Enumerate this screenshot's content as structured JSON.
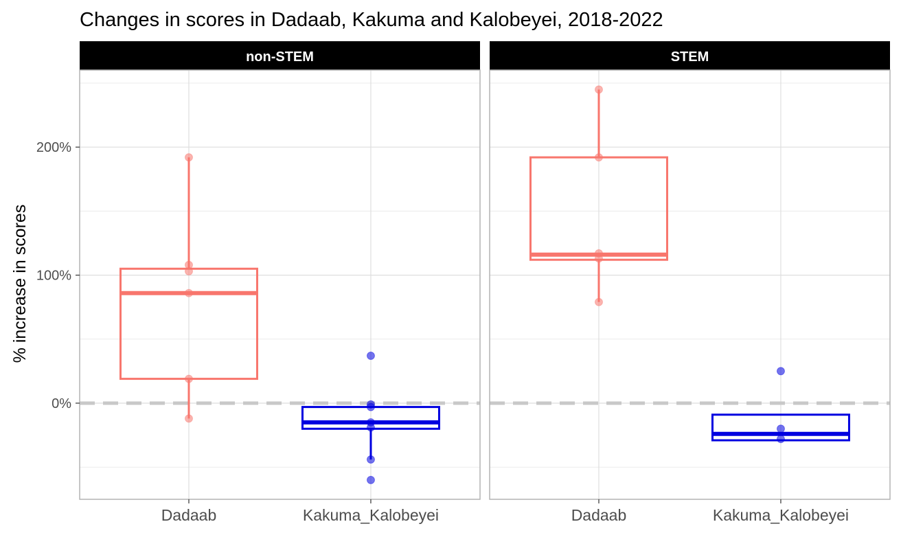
{
  "chart_data": {
    "type": "box",
    "title": "Changes in scores in Dadaab, Kakuma and Kalobeyei, 2018-2022",
    "ylabel": "% increase in scores",
    "xlabel": "",
    "ylim": [
      -75,
      255
    ],
    "y_ticks": [
      0,
      100,
      200
    ],
    "y_tick_labels": [
      "0%",
      "100%",
      "200%"
    ],
    "y_minor_ticks": [
      -50,
      50,
      150,
      250
    ],
    "reference_line": {
      "y": 0,
      "style": "dashed",
      "color": "#c8c8c8"
    },
    "categories": [
      "Dadaab",
      "Kakuma_Kalobeyei"
    ],
    "colors": {
      "Dadaab": "#f8766d",
      "Kakuma_Kalobeyei": "#0000e0"
    },
    "grid": true,
    "facets": [
      {
        "label": "non-STEM",
        "boxes": [
          {
            "category": "Dadaab",
            "q1": 19,
            "median": 86,
            "q3": 105,
            "whisker_low": -12,
            "whisker_high": 192,
            "points": [
              192,
              108,
              103,
              86,
              19,
              -12
            ]
          },
          {
            "category": "Kakuma_Kalobeyei",
            "q1": -20,
            "median": -15,
            "q3": -3,
            "whisker_low": -44,
            "whisker_high": -3,
            "points": [
              37,
              -1,
              -3,
              -15,
              -19,
              -44,
              -60
            ]
          }
        ]
      },
      {
        "label": "STEM",
        "boxes": [
          {
            "category": "Dadaab",
            "q1": 112,
            "median": 116,
            "q3": 192,
            "whisker_low": 79,
            "whisker_high": 245,
            "points": [
              245,
              192,
              117,
              113,
              79
            ]
          },
          {
            "category": "Kakuma_Kalobeyei",
            "q1": -29,
            "median": -24,
            "q3": -9,
            "whisker_low": -29,
            "whisker_high": -9,
            "points": [
              25,
              -20,
              -28
            ]
          }
        ]
      }
    ]
  }
}
